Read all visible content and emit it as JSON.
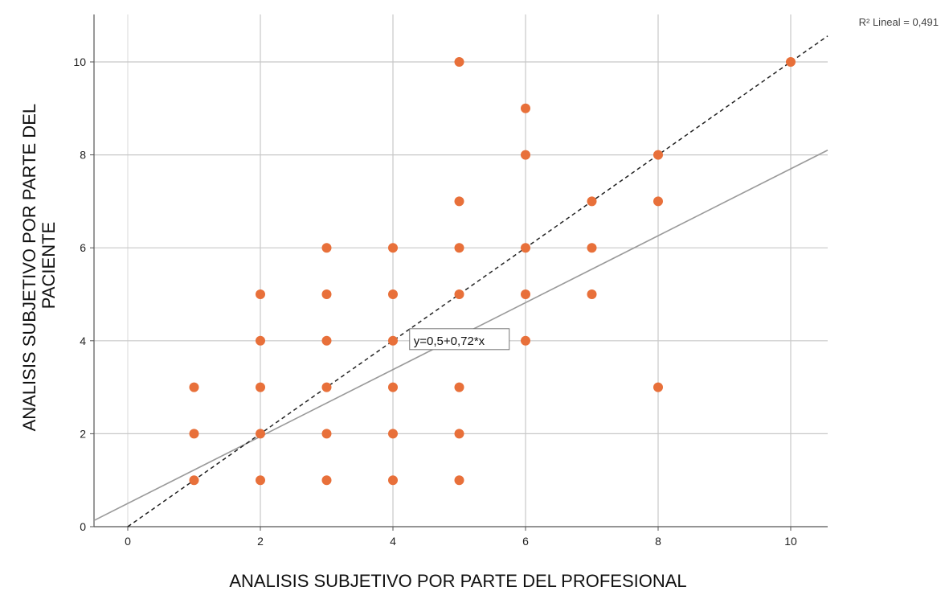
{
  "chart_data": {
    "type": "scatter",
    "xlabel": "ANALISIS SUBJETIVO POR PARTE DEL PROFESIONAL",
    "ylabel_lines": [
      "ANALISIS SUBJETIVO POR PARTE DEL",
      "PACIENTE"
    ],
    "xlim": [
      -0.5,
      10.5
    ],
    "ylim": [
      0,
      11
    ],
    "xticks": [
      0,
      2,
      4,
      6,
      8,
      10
    ],
    "yticks": [
      0,
      2,
      4,
      6,
      8,
      10
    ],
    "grid": true,
    "point_color": "#e8703a",
    "points": [
      [
        1,
        1
      ],
      [
        1,
        2
      ],
      [
        1,
        3
      ],
      [
        2,
        1
      ],
      [
        2,
        2
      ],
      [
        2,
        3
      ],
      [
        2,
        4
      ],
      [
        2,
        5
      ],
      [
        3,
        1
      ],
      [
        3,
        2
      ],
      [
        3,
        3
      ],
      [
        3,
        4
      ],
      [
        3,
        5
      ],
      [
        3,
        6
      ],
      [
        4,
        1
      ],
      [
        4,
        2
      ],
      [
        4,
        3
      ],
      [
        4,
        4
      ],
      [
        4,
        5
      ],
      [
        4,
        6
      ],
      [
        5,
        1
      ],
      [
        5,
        2
      ],
      [
        5,
        3
      ],
      [
        5,
        5
      ],
      [
        5,
        6
      ],
      [
        5,
        7
      ],
      [
        5,
        10
      ],
      [
        6,
        4
      ],
      [
        6,
        5
      ],
      [
        6,
        6
      ],
      [
        6,
        8
      ],
      [
        6,
        9
      ],
      [
        7,
        5
      ],
      [
        7,
        6
      ],
      [
        7,
        7
      ],
      [
        8,
        3
      ],
      [
        8,
        7
      ],
      [
        8,
        8
      ],
      [
        10,
        10
      ]
    ],
    "fit_line": {
      "intercept": 0.5,
      "slope": 0.72,
      "label": "y=0,5+0,72*x",
      "label_anchor": [
        4.3,
        4
      ]
    },
    "reference_line": {
      "intercept": 0,
      "slope": 1,
      "style": "dashed"
    },
    "r2_label": "R² Lineal = 0,491"
  }
}
